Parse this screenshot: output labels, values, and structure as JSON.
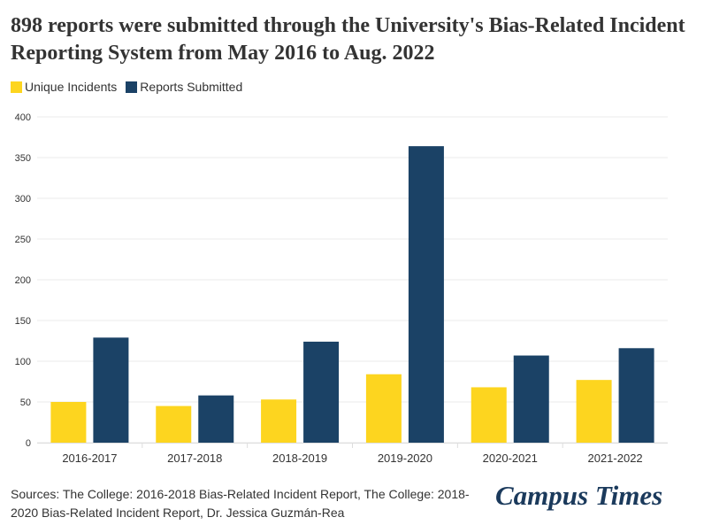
{
  "title": "898 reports were submitted through the University's Bias-Related Incident Reporting System from May 2016 to Aug. 2022",
  "source": "Sources: The College: 2016-2018 Bias-Related Incident Report, The College: 2018-2020 Bias-Related Incident Report, Dr. Jessica Guzmán-Rea",
  "logo": "Campus Times",
  "colors": {
    "unique": "#fdd51f",
    "reports": "#1b4266"
  },
  "chart_data": {
    "type": "bar",
    "title": "898 reports were submitted through the University's Bias-Related Incident Reporting System from May 2016 to Aug. 2022",
    "categories": [
      "2016-2017",
      "2017-2018",
      "2018-2019",
      "2019-2020",
      "2020-2021",
      "2021-2022"
    ],
    "series": [
      {
        "name": "Unique Incidents",
        "values": [
          50,
          45,
          53,
          84,
          68,
          77
        ]
      },
      {
        "name": "Reports Submitted",
        "values": [
          129,
          58,
          124,
          364,
          107,
          116
        ]
      }
    ],
    "ylim": [
      0,
      400
    ],
    "yticks": [
      0,
      50,
      100,
      150,
      200,
      250,
      300,
      350,
      400
    ],
    "grid": true,
    "legend": "top-left"
  }
}
